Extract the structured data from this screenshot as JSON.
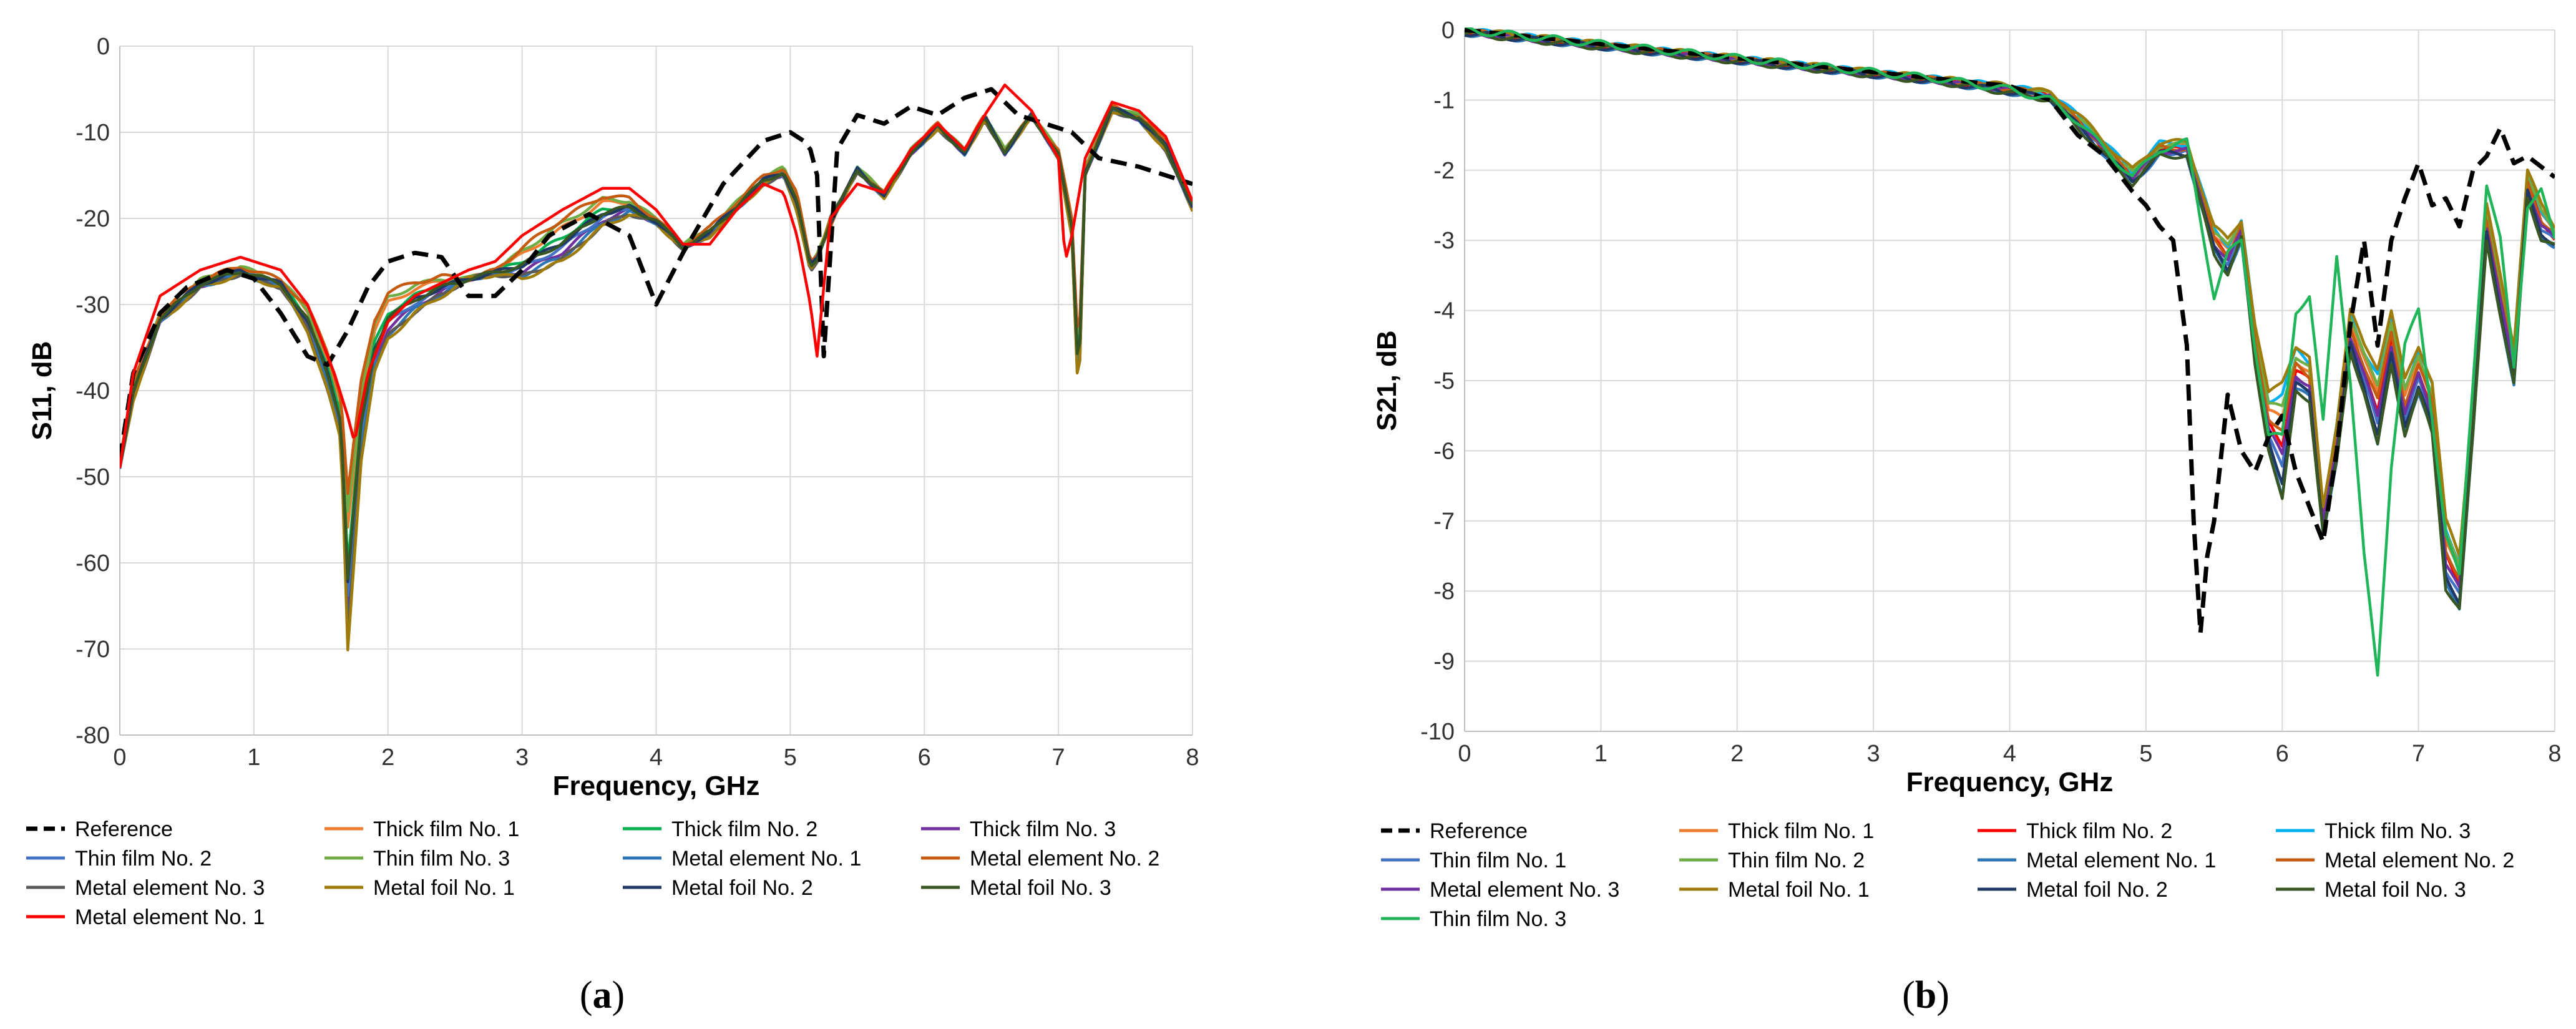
{
  "chart_data": [
    {
      "type": "line",
      "panel_label": "a",
      "xlabel": "Frequency, GHz",
      "ylabel": "S11, dB",
      "xlim": [
        0,
        8
      ],
      "ylim": [
        -80,
        0
      ],
      "xticks": [
        "0",
        "1",
        "2",
        "3",
        "4",
        "5",
        "6",
        "7",
        "8"
      ],
      "yticks": [
        "0",
        "-10",
        "-20",
        "-30",
        "-40",
        "-50",
        "-60",
        "-70",
        "-80"
      ],
      "grid": true,
      "legend_position": "bottom",
      "legend_columns": 4,
      "series": [
        {
          "name": "Reference",
          "color": "#000000",
          "dash": true,
          "x": [
            0,
            0.1,
            0.3,
            0.5,
            0.8,
            1.0,
            1.2,
            1.4,
            1.55,
            1.7,
            1.85,
            2.0,
            2.2,
            2.4,
            2.6,
            2.8,
            3.0,
            3.2,
            3.5,
            3.8,
            4.0,
            4.2,
            4.5,
            4.8,
            5.0,
            5.1,
            5.15,
            5.2,
            5.25,
            5.3,
            5.35,
            5.5,
            5.7,
            5.9,
            6.1,
            6.3,
            6.5,
            6.7,
            6.9,
            7.1,
            7.3,
            7.6,
            8.0
          ],
          "y": [
            -48,
            -38,
            -31,
            -28,
            -26,
            -27,
            -31,
            -36,
            -37,
            -33,
            -28,
            -25,
            -24,
            -24.5,
            -29,
            -29,
            -26,
            -22,
            -19.5,
            -22,
            -30,
            -24,
            -16,
            -11,
            -10,
            -11,
            -12,
            -15,
            -36,
            -24,
            -12,
            -8,
            -9,
            -7,
            -8,
            -6,
            -5,
            -8,
            -9,
            -10,
            -13,
            -14,
            -16
          ]
        },
        {
          "name": "Thick film No. 1",
          "color": "#ED7D31",
          "variant": "upper",
          "k": 0.3
        },
        {
          "name": "Thick film No. 2",
          "color": "#00B050",
          "variant": "lower",
          "k": 0.5
        },
        {
          "name": "Thick film No. 3",
          "color": "#7030A0",
          "variant": "lower",
          "k": 0.2
        },
        {
          "name": "Thin film No. 2",
          "color": "#4472C4",
          "variant": "upper",
          "k": 0.7
        },
        {
          "name": "Thin film No. 3",
          "color": "#70AD47",
          "variant": "lower",
          "k": 0.8
        },
        {
          "name": "Metal element No. 1",
          "color": "#2E75B6",
          "variant": "upper",
          "k": 0.9
        },
        {
          "name": "Metal element No. 2",
          "color": "#C55A11",
          "variant": "upper",
          "k": 0.1
        },
        {
          "name": "Metal element No. 3",
          "color": "#595959",
          "variant": "upper",
          "k": 0.95
        },
        {
          "name": "Metal foil No. 1",
          "color": "#9E7C0C",
          "variant": "lower",
          "k": 0.0
        },
        {
          "name": "Metal foil No. 2",
          "color": "#203864",
          "variant": "upper",
          "k": 0.6
        },
        {
          "name": "Metal foil No. 3",
          "color": "#375623",
          "variant": "lower",
          "k": 0.4
        },
        {
          "name": "Metal element No. 1",
          "color": "#FF0000",
          "variant": "red",
          "k": 0.5
        }
      ],
      "legend_order": [
        "Reference",
        "Thick film No. 1",
        "Thick film No. 2",
        "Thick film No. 3",
        "Thin film No. 2",
        "Thin film No. 3",
        "Metal element No. 1",
        "Metal element No. 2",
        "Metal element No. 3",
        "Metal foil No. 1",
        "Metal foil No. 2",
        "Metal foil No. 3",
        "Metal element No. 1"
      ]
    },
    {
      "type": "line",
      "panel_label": "b",
      "xlabel": "Frequency, GHz",
      "ylabel": "S21, dB",
      "xlim": [
        0,
        8
      ],
      "ylim": [
        -10,
        0
      ],
      "xticks": [
        "0",
        "1",
        "2",
        "3",
        "4",
        "5",
        "6",
        "7",
        "8"
      ],
      "yticks": [
        "0",
        "-1",
        "-2",
        "-3",
        "-4",
        "-5",
        "-6",
        "-7",
        "-8",
        "-9",
        "-10"
      ],
      "grid": true,
      "legend_position": "bottom",
      "legend_columns": 4,
      "series": [
        {
          "name": "Reference",
          "color": "#000000",
          "dash": true,
          "x": [
            0,
            0.5,
            1.0,
            1.5,
            2.0,
            2.5,
            3.0,
            3.5,
            4.0,
            4.3,
            4.5,
            4.7,
            4.9,
            5.0,
            5.1,
            5.2,
            5.3,
            5.35,
            5.4,
            5.45,
            5.5,
            5.6,
            5.7,
            5.8,
            5.9,
            6.0,
            6.1,
            6.2,
            6.3,
            6.4,
            6.5,
            6.6,
            6.7,
            6.8,
            6.9,
            7.0,
            7.1,
            7.2,
            7.3,
            7.4,
            7.5,
            7.6,
            7.7,
            7.8,
            8.0
          ],
          "y": [
            0,
            -0.1,
            -0.2,
            -0.3,
            -0.4,
            -0.5,
            -0.6,
            -0.7,
            -0.8,
            -1.0,
            -1.5,
            -1.8,
            -2.3,
            -2.5,
            -2.8,
            -3.0,
            -4.5,
            -7.0,
            -8.6,
            -7.5,
            -7.0,
            -5.2,
            -6.0,
            -6.3,
            -5.8,
            -5.5,
            -6.3,
            -6.8,
            -7.3,
            -6.0,
            -4.2,
            -3.0,
            -4.5,
            -3.0,
            -2.4,
            -1.9,
            -2.5,
            -2.4,
            -2.8,
            -2.0,
            -1.8,
            -1.4,
            -1.9,
            -1.8,
            -2.1
          ]
        },
        {
          "name": "Thick film No. 1",
          "color": "#ED7D31",
          "variant": "group",
          "k": 0.3
        },
        {
          "name": "Thick film No. 2",
          "color": "#FF0000",
          "variant": "group",
          "k": 0.5
        },
        {
          "name": "Thick film No. 3",
          "color": "#00B0F0",
          "variant": "group",
          "k": 0.1
        },
        {
          "name": "Thin film No. 1",
          "color": "#4472C4",
          "variant": "group",
          "k": 0.7
        },
        {
          "name": "Thin film No. 2",
          "color": "#70AD47",
          "variant": "group",
          "k": 0.2
        },
        {
          "name": "Metal element No. 1",
          "color": "#2E75B6",
          "variant": "group",
          "k": 0.9
        },
        {
          "name": "Metal element No. 2",
          "color": "#C55A11",
          "variant": "group",
          "k": 0.4
        },
        {
          "name": "Metal element No. 3",
          "color": "#7030A0",
          "variant": "group",
          "k": 0.6
        },
        {
          "name": "Metal foil No. 1",
          "color": "#9E7C0C",
          "variant": "group",
          "k": 0.0
        },
        {
          "name": "Metal foil No. 2",
          "color": "#203864",
          "variant": "group",
          "k": 0.8
        },
        {
          "name": "Metal foil No. 3",
          "color": "#375623",
          "variant": "group",
          "k": 0.95
        },
        {
          "name": "Thin film No. 3",
          "color": "#21B55A",
          "variant": "green",
          "k": 0.5
        }
      ],
      "legend_order": [
        "Reference",
        "Thick film No. 1",
        "Thick film No. 2",
        "Thick film No. 3",
        "Thin film No. 1",
        "Thin film No. 2",
        "Metal element No. 1",
        "Metal element No. 2",
        "Metal element No. 3",
        "Metal foil No. 1",
        "Metal foil No. 2",
        "Metal foil No. 3",
        "Thin film No. 3"
      ]
    }
  ],
  "envelopes": {
    "s11_upper": {
      "x": [
        0,
        0.1,
        0.3,
        0.6,
        0.9,
        1.2,
        1.4,
        1.55,
        1.65,
        1.7,
        1.8,
        1.9,
        2.0,
        2.2,
        2.4,
        2.6,
        2.8,
        3.0,
        3.3,
        3.6,
        3.8,
        4.0,
        4.2,
        4.4,
        4.6,
        4.8,
        4.95,
        5.05,
        5.15,
        5.2,
        5.3,
        5.5,
        5.7,
        5.9,
        6.1,
        6.3,
        6.45,
        6.6,
        6.8,
        7.0,
        7.1,
        7.15,
        7.2,
        7.4,
        7.6,
        7.8,
        8.0
      ],
      "y": [
        -48,
        -39,
        -31,
        -27,
        -25.5,
        -27,
        -30,
        -35,
        -40,
        -50,
        -38,
        -31,
        -28,
        -27,
        -26.5,
        -27,
        -26,
        -23,
        -19.5,
        -17,
        -17.5,
        -20,
        -23,
        -21,
        -18,
        -15,
        -14,
        -17,
        -25,
        -24,
        -21,
        -14,
        -17,
        -12,
        -9,
        -12,
        -8,
        -12,
        -8,
        -12,
        -20,
        -35,
        -14,
        -7,
        -8,
        -11,
        -18
      ]
    },
    "s11_lower": {
      "x": [
        0,
        0.1,
        0.3,
        0.6,
        0.9,
        1.2,
        1.4,
        1.55,
        1.65,
        1.7,
        1.8,
        1.9,
        2.0,
        2.2,
        2.4,
        2.6,
        2.8,
        3.0,
        3.3,
        3.6,
        3.8,
        4.0,
        4.2,
        4.4,
        4.6,
        4.8,
        4.95,
        5.05,
        5.15,
        5.2,
        5.3,
        5.5,
        5.7,
        5.9,
        6.1,
        6.3,
        6.45,
        6.6,
        6.8,
        7.0,
        7.1,
        7.15,
        7.2,
        7.4,
        7.6,
        7.8,
        8.0
      ],
      "y": [
        -49,
        -41,
        -32,
        -28,
        -26.5,
        -28,
        -33,
        -40,
        -46,
        -70,
        -48,
        -38,
        -34,
        -31,
        -29,
        -27,
        -26.5,
        -27,
        -25,
        -21,
        -19.5,
        -20.5,
        -23.5,
        -22,
        -19,
        -16,
        -15,
        -19,
        -26,
        -25,
        -20,
        -14.5,
        -17.5,
        -12.5,
        -9.5,
        -12.5,
        -8.5,
        -12.5,
        -8,
        -13,
        -22,
        -42,
        -15,
        -7.5,
        -8.5,
        -12,
        -19
      ]
    },
    "s11_red": {
      "x": [
        0,
        0.1,
        0.3,
        0.6,
        0.9,
        1.2,
        1.4,
        1.6,
        1.7,
        1.75,
        1.85,
        2.0,
        2.2,
        2.4,
        2.6,
        2.8,
        3.0,
        3.3,
        3.6,
        3.8,
        4.0,
        4.2,
        4.4,
        4.6,
        4.8,
        4.95,
        5.05,
        5.15,
        5.2,
        5.3,
        5.5,
        5.7,
        5.9,
        6.1,
        6.3,
        6.45,
        6.6,
        6.8,
        7.0,
        7.05,
        7.1,
        7.2,
        7.4,
        7.6,
        7.8,
        8.0
      ],
      "y": [
        -49,
        -38,
        -29,
        -26,
        -24.5,
        -26,
        -30,
        -38,
        -43,
        -46,
        -38,
        -32,
        -29,
        -27.5,
        -26,
        -25,
        -22,
        -19,
        -16.5,
        -16.5,
        -19,
        -23,
        -23,
        -19,
        -16,
        -17,
        -22,
        -30,
        -36,
        -20,
        -16,
        -17,
        -12,
        -9,
        -12,
        -8,
        -4.5,
        -7.5,
        -13,
        -25,
        -22,
        -13,
        -6.5,
        -7.5,
        -10.5,
        -18
      ]
    },
    "s21_group_upper": {
      "x": [
        0,
        0.5,
        1.0,
        1.5,
        2.0,
        2.5,
        3.0,
        3.5,
        4.0,
        4.3,
        4.5,
        4.7,
        4.9,
        5.1,
        5.3,
        5.5,
        5.6,
        5.7,
        5.8,
        5.9,
        6.0,
        6.1,
        6.2,
        6.3,
        6.4,
        6.5,
        6.6,
        6.7,
        6.8,
        6.9,
        7.0,
        7.1,
        7.2,
        7.3,
        7.4,
        7.5,
        7.6,
        7.7,
        7.8,
        7.9,
        8.0
      ],
      "y": [
        0,
        -0.1,
        -0.2,
        -0.3,
        -0.4,
        -0.5,
        -0.6,
        -0.7,
        -0.8,
        -0.9,
        -1.2,
        -1.6,
        -2.0,
        -1.6,
        -1.6,
        -2.8,
        -3.0,
        -2.7,
        -4.2,
        -5.2,
        -5.0,
        -4.5,
        -4.7,
        -6.8,
        -5.6,
        -4.0,
        -4.5,
        -4.8,
        -4.0,
        -5.0,
        -4.5,
        -5.0,
        -7.0,
        -7.5,
        -5.2,
        -2.5,
        -3.5,
        -4.5,
        -2.0,
        -2.5,
        -2.8
      ]
    },
    "s21_group_lower": {
      "x": [
        0,
        0.5,
        1.0,
        1.5,
        2.0,
        2.5,
        3.0,
        3.5,
        4.0,
        4.3,
        4.5,
        4.7,
        4.9,
        5.1,
        5.3,
        5.5,
        5.6,
        5.7,
        5.8,
        5.9,
        6.0,
        6.1,
        6.2,
        6.3,
        6.4,
        6.5,
        6.6,
        6.7,
        6.8,
        6.9,
        7.0,
        7.1,
        7.2,
        7.3,
        7.4,
        7.5,
        7.6,
        7.7,
        7.8,
        7.9,
        8.0
      ],
      "y": [
        -0.05,
        -0.15,
        -0.25,
        -0.35,
        -0.45,
        -0.55,
        -0.65,
        -0.75,
        -0.9,
        -1.0,
        -1.4,
        -1.8,
        -2.2,
        -1.8,
        -1.8,
        -3.2,
        -3.5,
        -3.0,
        -4.8,
        -6.0,
        -6.8,
        -5.2,
        -5.3,
        -7.2,
        -6.2,
        -4.6,
        -5.2,
        -6.0,
        -4.8,
        -5.8,
        -5.2,
        -5.8,
        -8.0,
        -8.3,
        -5.8,
        -3.0,
        -4.1,
        -5.1,
        -2.4,
        -3.0,
        -3.1
      ]
    },
    "s21_green": {
      "x": [
        0,
        0.5,
        1.0,
        1.5,
        2.0,
        2.5,
        3.0,
        3.5,
        4.0,
        4.3,
        4.5,
        4.7,
        4.9,
        5.1,
        5.3,
        5.5,
        5.6,
        5.7,
        5.8,
        5.9,
        6.0,
        6.1,
        6.2,
        6.3,
        6.4,
        6.5,
        6.6,
        6.7,
        6.8,
        6.9,
        7.0,
        7.1,
        7.2,
        7.3,
        7.4,
        7.5,
        7.6,
        7.7,
        7.8,
        7.9,
        8.0
      ],
      "y": [
        0,
        -0.1,
        -0.2,
        -0.3,
        -0.4,
        -0.5,
        -0.6,
        -0.7,
        -0.85,
        -1.0,
        -1.3,
        -1.7,
        -2.1,
        -1.7,
        -1.6,
        -3.8,
        -3.2,
        -3.0,
        -4.5,
        -5.8,
        -5.8,
        -4.0,
        -3.8,
        -5.6,
        -3.2,
        -5.0,
        -7.5,
        -9.2,
        -6.2,
        -4.5,
        -4.0,
        -5.5,
        -7.2,
        -7.8,
        -5.0,
        -2.2,
        -3.0,
        -4.8,
        -2.5,
        -2.3,
        -3.0
      ]
    }
  },
  "captions": {
    "a": "a",
    "b": "b"
  }
}
